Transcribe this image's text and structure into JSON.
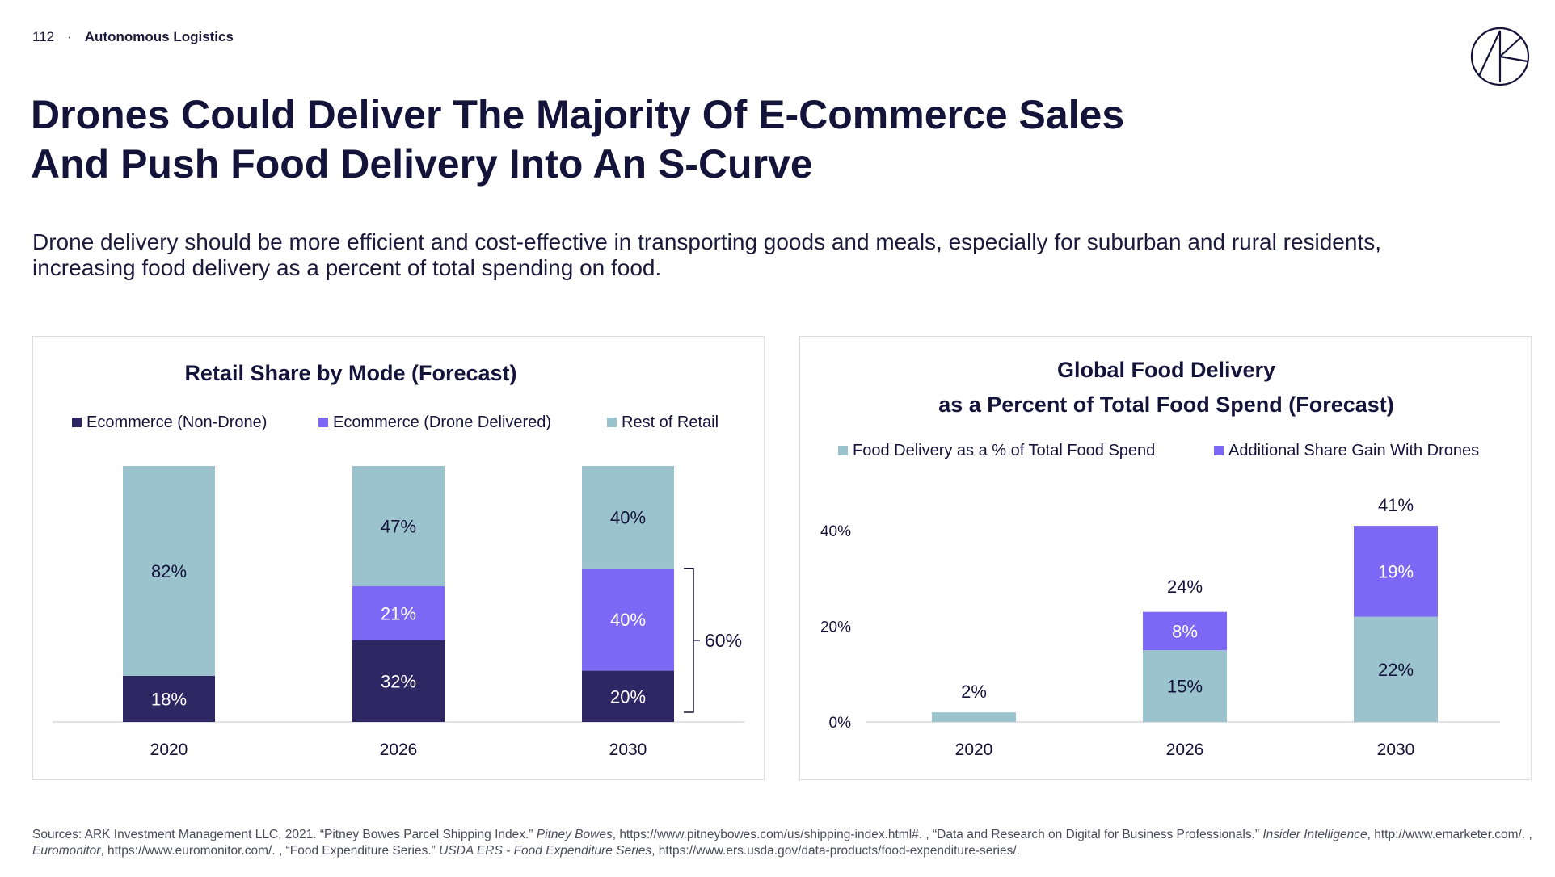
{
  "header": {
    "page_number": "112",
    "separator": "·",
    "section": "Autonomous Logistics"
  },
  "logo_icon": "ark-logo-icon",
  "title": {
    "line1": "Drones Could Deliver The Majority Of E-Commerce Sales",
    "line2": "And Push Food Delivery Into An S-Curve"
  },
  "subtitle": "Drone delivery should be more efficient and cost-effective in transporting goods and meals, especially for suburban and rural residents, increasing food delivery as a percent of total spending on food.",
  "colors": {
    "ecommerce_non_drone": "#2f2764",
    "drone": "#7c68f5",
    "rest_of_retail": "#9bc3ce",
    "text_dark": "#14133a"
  },
  "chart_data": [
    {
      "type": "bar",
      "stacked": true,
      "title": "Retail Share by Mode (Forecast)",
      "legend_position": "top",
      "categories": [
        "2020",
        "2026",
        "2030"
      ],
      "series": [
        {
          "name": "Ecommerce (Non-Drone)",
          "values": [
            18,
            32,
            20
          ],
          "labels": [
            "18%",
            "32%",
            "20%"
          ],
          "color": "#2f2764"
        },
        {
          "name": "Ecommerce (Drone Delivered)",
          "values": [
            0,
            21,
            40
          ],
          "labels": [
            "",
            "21%",
            "40%"
          ],
          "color": "#7c68f5"
        },
        {
          "name": "Rest of Retail",
          "values": [
            82,
            47,
            40
          ],
          "labels": [
            "82%",
            "47%",
            "40%"
          ],
          "color": "#9bc3ce"
        }
      ],
      "ylim": [
        0,
        100
      ],
      "grid": false,
      "annotation": {
        "label": "60%",
        "category": "2030",
        "from": 0,
        "to": 60
      }
    },
    {
      "type": "bar",
      "stacked": true,
      "title_line1": "Global Food Delivery",
      "title_line2": "as a Percent of Total Food Spend (Forecast)",
      "legend_position": "top",
      "categories": [
        "2020",
        "2026",
        "2030"
      ],
      "series": [
        {
          "name": "Food Delivery as a % of Total Food Spend",
          "values": [
            2,
            15,
            22
          ],
          "labels": [
            "",
            "15%",
            "22%"
          ],
          "color": "#9bc3ce"
        },
        {
          "name": "Additional Share Gain With Drones",
          "values": [
            0,
            8,
            19
          ],
          "labels": [
            "",
            "8%",
            "19%"
          ],
          "color": "#7c68f5"
        }
      ],
      "totals": [
        "2%",
        "24%",
        "41%"
      ],
      "total_values": [
        2,
        24,
        41
      ],
      "yticks": [
        "0%",
        "20%",
        "40%"
      ],
      "ytick_values": [
        0,
        20,
        40
      ],
      "ylim": [
        0,
        46
      ],
      "grid": false
    }
  ],
  "sources": {
    "p1": "Sources: ARK Investment Management LLC, 2021. “Pitney Bowes Parcel Shipping Index.” ",
    "i1": "Pitney Bowes",
    "p2": ", https://www.pitneybowes.com/us/shipping-index.html#. , “Data and Research on Digital for Business Professionals.” ",
    "i2": "Insider Intelligence",
    "p3": ", http://www.emarketer.com/. , ",
    "i3": "Euromonitor",
    "p4": ", https://www.euromonitor.com/. , “Food Expenditure Series.” ",
    "i4": "USDA ERS - Food Expenditure Series",
    "p5": ", https://www.ers.usda.gov/data-products/food-expenditure-series/."
  }
}
